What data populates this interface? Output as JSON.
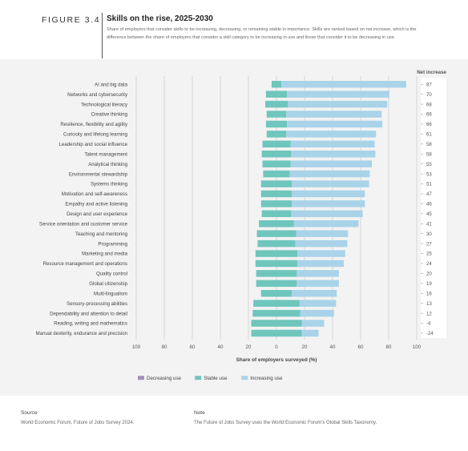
{
  "header": {
    "figure_label": "FIGURE 3.4",
    "title": "Skills on the rise, 2025-2030",
    "subtitle": "Share of employers that consider skills to be increasing, decreasing, or remaining stable in importance. Skills are ranked based on net increase, which is the difference between the share of employers that consider a skill category to be increasing in use and those that consider it to be decreasing in use."
  },
  "chart_data": {
    "type": "bar",
    "orientation": "horizontal-stacked",
    "net_header": "Net increase",
    "xlabel": "Share of employers surveyed (%)",
    "xlim": [
      -100,
      100
    ],
    "xticks": [
      "100",
      "80",
      "60",
      "40",
      "20",
      "0",
      "20",
      "40",
      "60",
      "80",
      "100"
    ],
    "grid": true,
    "legend_position": "bottom-center",
    "categories": [
      "AI and big data",
      "Networks and cybersecurity",
      "Technological literacy",
      "Creative thinking",
      "Resilience, flexibility and agility",
      "Curiosity and lifelong learning",
      "Leadership and social influence",
      "Talent management",
      "Analytical thinking",
      "Environmental stewardship",
      "Systems thinking",
      "Motivation and self-awareness",
      "Empathy and active listening",
      "Design and user experience",
      "Service orientation and customer service",
      "Teaching and mentoring",
      "Programming",
      "Marketing and media",
      "Resource management and operations",
      "Quality control",
      "Global citizenship",
      "Multi-lingualism",
      "Sensory-processing abilities",
      "Dependability and attention to detail",
      "Reading, writing and mathematics",
      "Manual dexterity, endurance and precision"
    ],
    "net_labels": [
      "87",
      "70",
      "68",
      "66",
      "66",
      "61",
      "58",
      "58",
      "55",
      "53",
      "51",
      "47",
      "46",
      "45",
      "41",
      "30",
      "27",
      "25",
      "24",
      "20",
      "19",
      "16",
      "13",
      "12",
      "-4",
      "-24"
    ],
    "series": [
      {
        "name": "Decreasing use",
        "color": "#a48fc0",
        "values": [
          2,
          3,
          3,
          2,
          2,
          3,
          2,
          2,
          3,
          4,
          4,
          5,
          6,
          6,
          5,
          7,
          10,
          9,
          9,
          10,
          11,
          16,
          13,
          12,
          20,
          36
        ]
      },
      {
        "name": "Stable use",
        "color": "#6fc6bd",
        "values": [
          7,
          15,
          16,
          14,
          15,
          14,
          20,
          21,
          20,
          19,
          22,
          22,
          22,
          21,
          25,
          28,
          27,
          30,
          30,
          29,
          29,
          22,
          33,
          34,
          36,
          36
        ]
      },
      {
        "name": "Increasing use",
        "color": "#a9d3e8",
        "values": [
          89,
          73,
          71,
          68,
          68,
          64,
          60,
          60,
          58,
          57,
          55,
          52,
          52,
          51,
          46,
          37,
          37,
          34,
          33,
          30,
          30,
          32,
          26,
          24,
          16,
          12
        ]
      }
    ]
  },
  "footer": {
    "source_heading": "Source",
    "source_text": "World Economic Forum, Future of Jobs Survey 2024.",
    "note_heading": "Note",
    "note_text": "The Future of Jobs Survey uses the World Economic Forum's Global Skills Taxonomy."
  }
}
